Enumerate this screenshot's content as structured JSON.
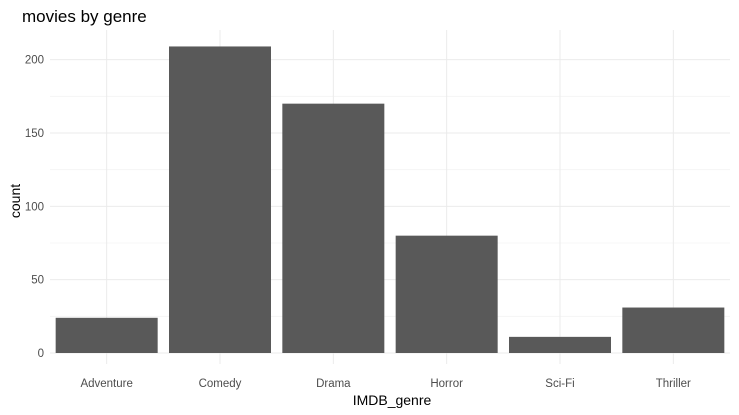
{
  "chart_data": {
    "type": "bar",
    "title": "movies by genre",
    "xlabel": "IMDB_genre",
    "ylabel": "count",
    "categories": [
      "Adventure",
      "Comedy",
      "Drama",
      "Horror",
      "Sci-Fi",
      "Thriller"
    ],
    "values": [
      24,
      209,
      170,
      80,
      11,
      31
    ],
    "ylim": [
      0,
      215
    ],
    "yticks": [
      0,
      50,
      100,
      150,
      200
    ],
    "grid": true,
    "colors": {
      "bar": "#595959",
      "grid_major": "#ebebeb",
      "grid_minor": "#f4f4f4",
      "background": "#ffffff"
    }
  }
}
